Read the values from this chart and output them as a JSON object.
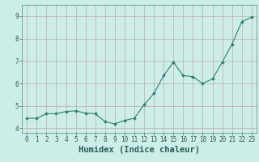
{
  "x": [
    0,
    1,
    2,
    3,
    4,
    5,
    6,
    7,
    8,
    9,
    10,
    11,
    12,
    13,
    14,
    15,
    16,
    17,
    18,
    19,
    20,
    21,
    22,
    23
  ],
  "y": [
    4.45,
    4.45,
    4.65,
    4.65,
    4.75,
    4.78,
    4.68,
    4.65,
    4.3,
    4.2,
    4.35,
    4.45,
    5.05,
    5.55,
    6.35,
    6.95,
    6.35,
    6.3,
    6.0,
    6.2,
    6.95,
    7.75,
    8.75,
    8.95
  ],
  "line_color": "#2e7d6e",
  "marker": "D",
  "markersize": 2.0,
  "linewidth": 0.8,
  "xlabel": "Humidex (Indice chaleur)",
  "xlabel_fontsize": 7.5,
  "xlabel_fontweight": "bold",
  "xlim": [
    -0.5,
    23.5
  ],
  "ylim": [
    3.8,
    9.5
  ],
  "yticks": [
    4,
    5,
    6,
    7,
    8,
    9
  ],
  "xticks": [
    0,
    1,
    2,
    3,
    4,
    5,
    6,
    7,
    8,
    9,
    10,
    11,
    12,
    13,
    14,
    15,
    16,
    17,
    18,
    19,
    20,
    21,
    22,
    23
  ],
  "tick_fontsize": 5.5,
  "bg_color": "#cdeee8",
  "grid_color": "#c0a8a8",
  "grid_linewidth": 0.5,
  "axes_bg": "#cdeee8"
}
